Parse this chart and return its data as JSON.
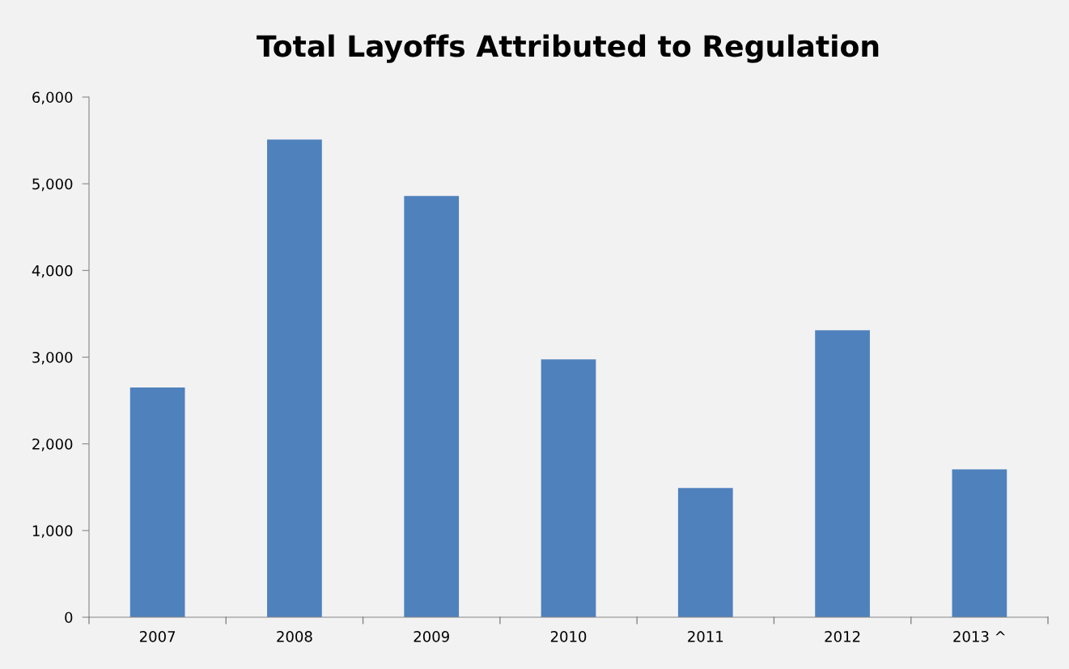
{
  "chart_data": {
    "type": "bar",
    "title": "Total Layoffs Attributed to Regulation",
    "categories": [
      "2007",
      "2008",
      "2009",
      "2010",
      "2011",
      "2012",
      "2013 ^"
    ],
    "values": [
      2650,
      5510,
      4860,
      2975,
      1490,
      3310,
      1705
    ],
    "color": "#4f81bd",
    "ylim": [
      0,
      6000
    ],
    "yticks": [
      {
        "value": 0,
        "label": "0"
      },
      {
        "value": 1000,
        "label": "1,000"
      },
      {
        "value": 2000,
        "label": "2,000"
      },
      {
        "value": 3000,
        "label": "3,000"
      },
      {
        "value": 4000,
        "label": "4,000"
      },
      {
        "value": 5000,
        "label": "5,000"
      },
      {
        "value": 6000,
        "label": "6,000"
      }
    ],
    "grid": false,
    "legend": false
  }
}
